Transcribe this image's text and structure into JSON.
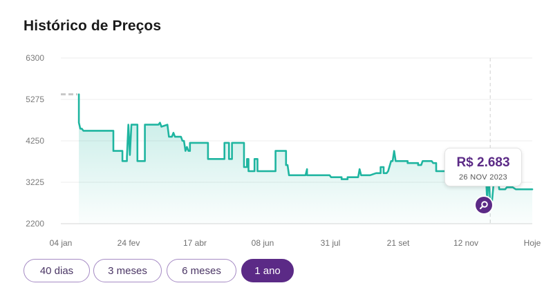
{
  "title": "Histórico de Preços",
  "chart_data": {
    "type": "area",
    "xlabel": "",
    "ylabel": "",
    "ylim": [
      2200,
      6300
    ],
    "y_ticks": [
      "6300",
      "5275",
      "4250",
      "3225",
      "2200"
    ],
    "x_ticks": [
      "04 jan",
      "24 fev",
      "17 abr",
      "08 jun",
      "31 jul",
      "21 set",
      "12 nov",
      "Hoje"
    ],
    "grid": true,
    "line_color": "#1fb5a0",
    "series": [
      {
        "values": [
          [
            12,
            5400
          ],
          [
            12,
            4700
          ],
          [
            13,
            4550
          ],
          [
            14,
            4550
          ],
          [
            15,
            4500
          ],
          [
            35,
            4500
          ],
          [
            35,
            4000
          ],
          [
            41,
            4000
          ],
          [
            41,
            3750
          ],
          [
            44,
            3750
          ],
          [
            44,
            3850
          ],
          [
            45,
            4650
          ],
          [
            46,
            3900
          ],
          [
            47,
            4650
          ],
          [
            51,
            4650
          ],
          [
            51,
            3750
          ],
          [
            56,
            3750
          ],
          [
            56,
            4650
          ],
          [
            65,
            4650
          ],
          [
            66,
            4700
          ],
          [
            67,
            4600
          ],
          [
            71,
            4650
          ],
          [
            72,
            4350
          ],
          [
            74,
            4350
          ],
          [
            75,
            4450
          ],
          [
            76,
            4350
          ],
          [
            80,
            4350
          ],
          [
            81,
            4250
          ],
          [
            82,
            4250
          ],
          [
            83,
            4000
          ],
          [
            84,
            4100
          ],
          [
            85,
            4000
          ],
          [
            86,
            4000
          ],
          [
            86,
            4200
          ],
          [
            98,
            4200
          ],
          [
            98,
            3800
          ],
          [
            109,
            3800
          ],
          [
            109,
            4200
          ],
          [
            112,
            4200
          ],
          [
            112,
            3800
          ],
          [
            114,
            3800
          ],
          [
            114,
            4200
          ],
          [
            122,
            4200
          ],
          [
            122,
            3600
          ],
          [
            124,
            3600
          ],
          [
            124,
            3800
          ],
          [
            125,
            3800
          ],
          [
            125,
            3500
          ],
          [
            129,
            3500
          ],
          [
            129,
            3800
          ],
          [
            131,
            3800
          ],
          [
            131,
            3500
          ],
          [
            143,
            3500
          ],
          [
            143,
            4000
          ],
          [
            150,
            4000
          ],
          [
            150,
            3650
          ],
          [
            151,
            3650
          ],
          [
            152,
            3400
          ],
          [
            163,
            3400
          ],
          [
            164,
            3550
          ],
          [
            164,
            3400
          ],
          [
            179,
            3400
          ],
          [
            180,
            3350
          ],
          [
            187,
            3350
          ],
          [
            187,
            3300
          ],
          [
            191,
            3300
          ],
          [
            191,
            3350
          ],
          [
            198,
            3350
          ],
          [
            199,
            3550
          ],
          [
            200,
            3400
          ],
          [
            205,
            3400
          ],
          [
            206,
            3400
          ],
          [
            210,
            3450
          ],
          [
            213,
            3450
          ],
          [
            213,
            3600
          ],
          [
            215,
            3600
          ],
          [
            215,
            3450
          ],
          [
            217,
            3450
          ],
          [
            218,
            3500
          ],
          [
            220,
            3750
          ],
          [
            221,
            3750
          ],
          [
            222,
            4000
          ],
          [
            223,
            3750
          ],
          [
            231,
            3750
          ],
          [
            231,
            3700
          ],
          [
            238,
            3700
          ],
          [
            238,
            3650
          ],
          [
            240,
            3650
          ],
          [
            241,
            3750
          ],
          [
            247,
            3750
          ],
          [
            248,
            3700
          ],
          [
            250,
            3700
          ],
          [
            250,
            3500
          ],
          [
            257,
            3500
          ],
          [
            257,
            3450
          ],
          [
            262,
            3450
          ],
          [
            263,
            3500
          ],
          [
            283,
            3500
          ],
          [
            284,
            2750
          ],
          [
            285,
            3450
          ],
          [
            286,
            2683
          ],
          [
            287,
            2683
          ],
          [
            289,
            3500
          ],
          [
            291,
            3500
          ],
          [
            292,
            3050
          ],
          [
            296,
            3050
          ],
          [
            297,
            3100
          ],
          [
            301,
            3100
          ],
          [
            303,
            3050
          ],
          [
            314,
            3050
          ]
        ]
      }
    ],
    "highlight": {
      "x": 286,
      "value": 2683
    }
  },
  "tooltip": {
    "price": "R$ 2.683",
    "date": "26 NOV 2023"
  },
  "ranges": {
    "options": [
      "40 dias",
      "3 meses",
      "6 meses",
      "1 ano"
    ],
    "active": 3
  }
}
